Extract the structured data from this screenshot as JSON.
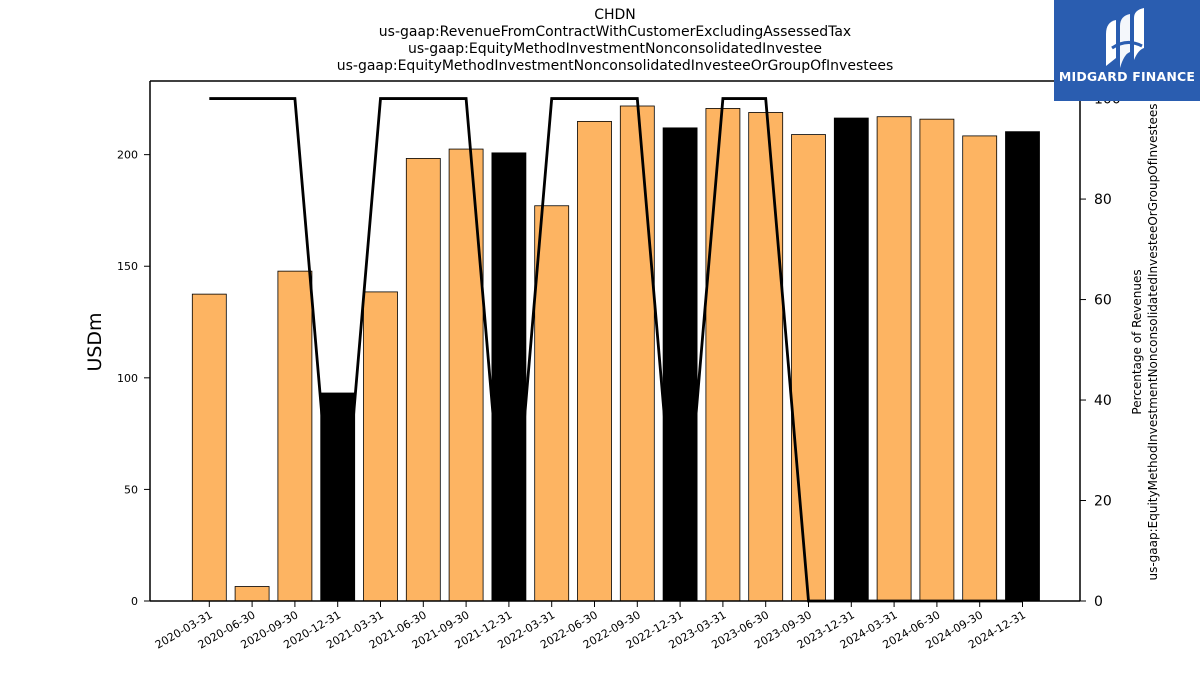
{
  "title_lines": [
    "CHDN",
    "us-gaap:RevenueFromContractWithCustomerExcludingAssessedTax",
    "us-gaap:EquityMethodInvestmentNonconsolidatedInvestee",
    "us-gaap:EquityMethodInvestmentNonconsolidatedInvesteeOrGroupOfInvestees"
  ],
  "logo": {
    "text": "MIDGARD FINANCE"
  },
  "colors": {
    "orange": "#fdb462",
    "black": "#000000",
    "line": "#000000",
    "logo_bg": "#2a5db0"
  },
  "chart_data": {
    "type": "bar",
    "categories": [
      "2020-03-31",
      "2020-06-30",
      "2020-09-30",
      "2020-12-31",
      "2021-03-31",
      "2021-06-30",
      "2021-09-30",
      "2021-12-31",
      "2022-03-31",
      "2022-06-30",
      "2022-09-30",
      "2022-12-31",
      "2023-03-31",
      "2023-06-30",
      "2023-09-30",
      "2023-12-31",
      "2024-03-31",
      "2024-06-30",
      "2024-09-30",
      "2024-12-31"
    ],
    "series": [
      {
        "values": [
          137.5,
          6.5,
          147.8,
          93.2,
          138.5,
          198.3,
          202.5,
          200.8,
          177.1,
          214.9,
          221.8,
          212.0,
          220.7,
          218.9,
          209.0,
          216.4,
          217.0,
          215.9,
          208.4,
          210.3
        ],
        "bar_colors": [
          "orange",
          "orange",
          "orange",
          "black",
          "orange",
          "orange",
          "orange",
          "black",
          "orange",
          "orange",
          "orange",
          "black",
          "orange",
          "orange",
          "orange",
          "black",
          "orange",
          "orange",
          "orange",
          "black"
        ],
        "axis": "left"
      },
      {
        "type": "line",
        "values": [
          100,
          100,
          100,
          0,
          100,
          100,
          100,
          0,
          100,
          100,
          100,
          0,
          100,
          100,
          0,
          0,
          0,
          0,
          0,
          0
        ],
        "axis": "right"
      }
    ],
    "ylabel": "USDm",
    "ylabel_right": "Percentage of Revenues\nus-gaap:EquityMethodInvestmentNonconsolidatedInvesteeOrGroupOfInvestees",
    "ylim": [
      0,
      233
    ],
    "ylim_right": [
      0,
      103.5
    ],
    "yticks": [
      0,
      50,
      100,
      150,
      200
    ],
    "yticks_right": [
      0,
      20,
      40,
      60,
      80,
      100
    ],
    "grid": false
  }
}
